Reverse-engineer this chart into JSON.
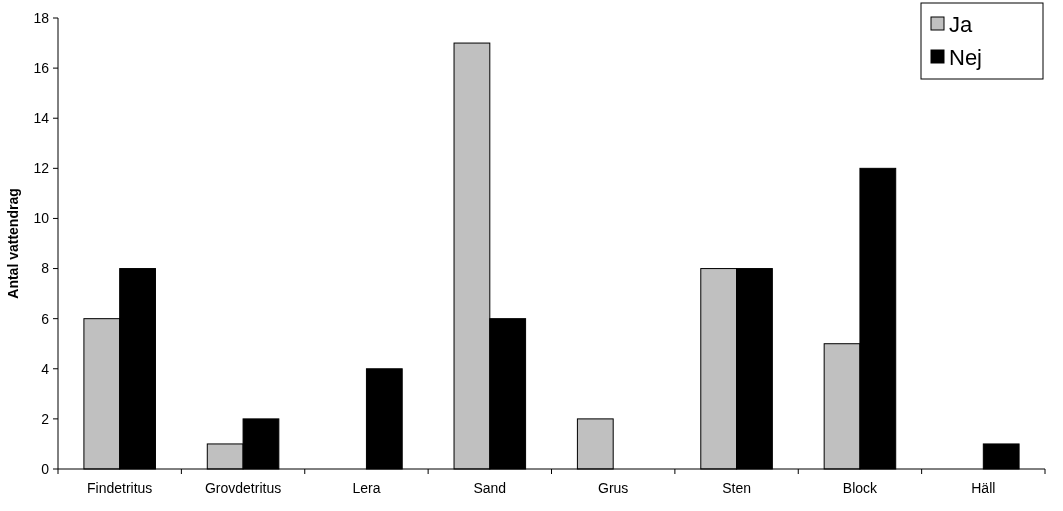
{
  "chart_data": {
    "type": "bar",
    "ylabel": "Antal vattendrag",
    "categories": [
      "Findetritus",
      "Grovdetritus",
      "Lera",
      "Sand",
      "Grus",
      "Sten",
      "Block",
      "Häll"
    ],
    "series": [
      {
        "name": "Ja",
        "color": "#c0c0c0",
        "values": [
          6,
          1,
          0,
          17,
          2,
          8,
          5,
          0
        ]
      },
      {
        "name": "Nej",
        "color": "#000000",
        "values": [
          8,
          2,
          4,
          6,
          0,
          8,
          12,
          1
        ]
      }
    ],
    "ylim": [
      0,
      18
    ],
    "yticks": [
      0,
      2,
      4,
      6,
      8,
      10,
      12,
      14,
      16,
      18
    ],
    "grid": false,
    "legend": "top right"
  }
}
